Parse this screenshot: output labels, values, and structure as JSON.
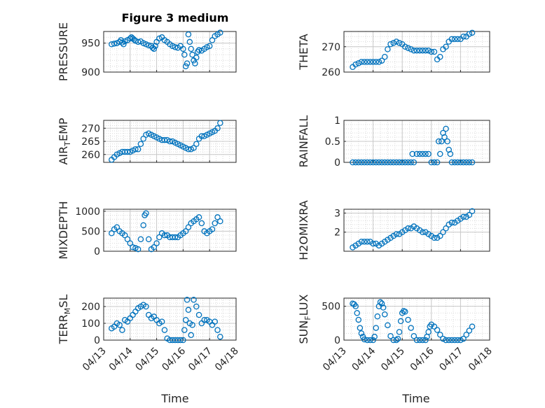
{
  "figure_title": "Figure 3 medium",
  "colors": {
    "marker": "#0072BD",
    "axis": "#262626",
    "grid": "#d9d9d9"
  },
  "chart_data": [
    {
      "type": "scatter",
      "ylabel": "PRESSURE",
      "ylabel_sub": "",
      "ylabel_tail": "",
      "ylim": [
        900,
        970
      ],
      "yticks": [
        900,
        950
      ],
      "xlim": [
        0,
        5
      ],
      "show_xticklabels": false,
      "x": [
        0.3,
        0.4,
        0.5,
        0.6,
        0.65,
        0.7,
        0.75,
        0.8,
        0.9,
        1.0,
        1.05,
        1.1,
        1.15,
        1.2,
        1.3,
        1.4,
        1.5,
        1.6,
        1.7,
        1.8,
        1.85,
        1.9,
        1.95,
        2.0,
        2.1,
        2.2,
        2.3,
        2.4,
        2.5,
        2.6,
        2.7,
        2.8,
        2.9,
        3.0,
        3.05,
        3.1,
        3.15,
        3.2,
        3.25,
        3.3,
        3.35,
        3.4,
        3.45,
        3.5,
        3.55,
        3.6,
        3.7,
        3.8,
        3.9,
        4.0,
        4.1,
        4.2,
        4.3,
        4.4
      ],
      "y": [
        948,
        949,
        950,
        952,
        955,
        951,
        948,
        953,
        955,
        958,
        960,
        958,
        956,
        954,
        952,
        953,
        950,
        948,
        946,
        945,
        942,
        940,
        945,
        952,
        958,
        960,
        955,
        952,
        948,
        945,
        943,
        942,
        945,
        940,
        930,
        910,
        915,
        965,
        952,
        940,
        930,
        920,
        915,
        925,
        935,
        938,
        937,
        940,
        943,
        945,
        955,
        962,
        965,
        968
      ]
    },
    {
      "type": "scatter",
      "ylabel": "THETA",
      "ylabel_sub": "",
      "ylabel_tail": "",
      "ylim": [
        260,
        276
      ],
      "yticks": [
        260,
        270
      ],
      "xlim": [
        0,
        5
      ],
      "show_xticklabels": false,
      "x": [
        0.3,
        0.4,
        0.5,
        0.6,
        0.7,
        0.8,
        0.9,
        1.0,
        1.1,
        1.2,
        1.3,
        1.4,
        1.5,
        1.6,
        1.7,
        1.8,
        1.9,
        2.0,
        2.1,
        2.2,
        2.3,
        2.4,
        2.5,
        2.6,
        2.7,
        2.8,
        2.9,
        3.0,
        3.1,
        3.2,
        3.3,
        3.4,
        3.5,
        3.6,
        3.7,
        3.8,
        3.9,
        4.0,
        4.1,
        4.2,
        4.3,
        4.4
      ],
      "y": [
        262,
        263,
        263.5,
        264,
        264,
        264,
        264,
        264,
        264,
        264,
        264.5,
        266,
        269,
        271,
        271.5,
        272,
        271.5,
        271,
        270,
        269.5,
        269,
        268.5,
        268.5,
        268.5,
        268.5,
        268.5,
        268.5,
        268,
        268,
        265,
        266,
        269,
        270,
        272,
        273,
        273,
        273,
        273,
        274,
        274,
        275,
        275.5
      ]
    },
    {
      "type": "scatter",
      "ylabel": "AIR",
      "ylabel_sub": "T",
      "ylabel_tail": "EMP",
      "ylim": [
        257,
        273
      ],
      "yticks": [
        260,
        265,
        270
      ],
      "xlim": [
        0,
        5
      ],
      "show_xticklabels": false,
      "x": [
        0.3,
        0.4,
        0.5,
        0.6,
        0.7,
        0.8,
        0.9,
        1.0,
        1.1,
        1.2,
        1.3,
        1.4,
        1.5,
        1.6,
        1.7,
        1.8,
        1.9,
        2.0,
        2.1,
        2.2,
        2.3,
        2.4,
        2.5,
        2.6,
        2.7,
        2.8,
        2.9,
        3.0,
        3.1,
        3.2,
        3.3,
        3.4,
        3.5,
        3.6,
        3.7,
        3.8,
        3.9,
        4.0,
        4.1,
        4.2,
        4.3,
        4.4
      ],
      "y": [
        258,
        259,
        260,
        260.5,
        261,
        261,
        261,
        261,
        261.5,
        262,
        262,
        264,
        266,
        267.5,
        268,
        267.5,
        267,
        266.5,
        266,
        265.5,
        265.5,
        265.5,
        265,
        265,
        264.5,
        264,
        263.5,
        263,
        262.5,
        262,
        262,
        262.5,
        264,
        266,
        267,
        267,
        267.5,
        268,
        268.5,
        269,
        270,
        272
      ]
    },
    {
      "type": "scatter",
      "ylabel": "RAINFALL",
      "ylabel_sub": "",
      "ylabel_tail": "",
      "ylim": [
        0,
        1
      ],
      "yticks": [
        0,
        0.5,
        1
      ],
      "xlim": [
        0,
        5
      ],
      "show_xticklabels": false,
      "x": [
        0.3,
        0.4,
        0.5,
        0.6,
        0.7,
        0.8,
        0.9,
        1.0,
        1.1,
        1.2,
        1.3,
        1.4,
        1.5,
        1.6,
        1.7,
        1.8,
        1.9,
        2.0,
        2.1,
        2.2,
        2.3,
        2.35,
        2.4,
        2.5,
        2.6,
        2.7,
        2.8,
        2.9,
        3.0,
        3.1,
        3.2,
        3.25,
        3.3,
        3.35,
        3.4,
        3.45,
        3.5,
        3.55,
        3.6,
        3.65,
        3.7,
        3.8,
        3.9,
        4.0,
        4.1,
        4.2,
        4.3,
        4.4
      ],
      "y": [
        0,
        0,
        0,
        0,
        0,
        0,
        0,
        0,
        0,
        0,
        0,
        0,
        0,
        0,
        0,
        0,
        0,
        0,
        0,
        0,
        0,
        0.2,
        0,
        0.2,
        0.2,
        0.2,
        0.2,
        0.2,
        0,
        0,
        0,
        0.5,
        0.2,
        0.5,
        0.7,
        0.6,
        0.8,
        0.5,
        0.3,
        0.2,
        0,
        0,
        0,
        0,
        0,
        0,
        0,
        0
      ]
    },
    {
      "type": "scatter",
      "ylabel": "MIXDEPTH",
      "ylabel_sub": "",
      "ylabel_tail": "",
      "ylim": [
        0,
        1050
      ],
      "yticks": [
        0,
        500,
        1000
      ],
      "xlim": [
        0,
        5
      ],
      "show_xticklabels": false,
      "x": [
        0.3,
        0.4,
        0.5,
        0.6,
        0.7,
        0.8,
        0.9,
        1.0,
        1.1,
        1.2,
        1.3,
        1.4,
        1.5,
        1.55,
        1.6,
        1.7,
        1.8,
        1.9,
        2.0,
        2.1,
        2.2,
        2.3,
        2.4,
        2.5,
        2.6,
        2.7,
        2.8,
        2.9,
        3.0,
        3.1,
        3.2,
        3.3,
        3.4,
        3.5,
        3.6,
        3.7,
        3.8,
        3.9,
        4.0,
        4.1,
        4.2,
        4.3,
        4.4
      ],
      "y": [
        450,
        550,
        600,
        500,
        450,
        400,
        300,
        200,
        100,
        80,
        50,
        300,
        650,
        900,
        950,
        300,
        50,
        100,
        200,
        350,
        450,
        400,
        400,
        350,
        350,
        350,
        350,
        400,
        450,
        500,
        600,
        700,
        750,
        800,
        850,
        700,
        500,
        450,
        500,
        550,
        700,
        850,
        750
      ]
    },
    {
      "type": "scatter",
      "ylabel": "H2OMIXRA",
      "ylabel_sub": "",
      "ylabel_tail": "",
      "ylim": [
        1,
        3.2
      ],
      "yticks": [
        2,
        3
      ],
      "xlim": [
        0,
        5
      ],
      "show_xticklabels": false,
      "x": [
        0.3,
        0.4,
        0.5,
        0.6,
        0.7,
        0.8,
        0.9,
        1.0,
        1.1,
        1.2,
        1.3,
        1.4,
        1.5,
        1.6,
        1.7,
        1.8,
        1.9,
        2.0,
        2.1,
        2.2,
        2.3,
        2.4,
        2.5,
        2.6,
        2.7,
        2.8,
        2.9,
        3.0,
        3.1,
        3.2,
        3.3,
        3.4,
        3.5,
        3.6,
        3.7,
        3.8,
        3.9,
        4.0,
        4.1,
        4.2,
        4.3,
        4.4
      ],
      "y": [
        1.2,
        1.3,
        1.4,
        1.5,
        1.5,
        1.5,
        1.5,
        1.4,
        1.4,
        1.3,
        1.4,
        1.5,
        1.6,
        1.7,
        1.8,
        1.9,
        1.9,
        2.0,
        2.1,
        2.2,
        2.2,
        2.3,
        2.2,
        2.1,
        2.0,
        2.0,
        1.9,
        1.8,
        1.7,
        1.7,
        1.8,
        2.0,
        2.2,
        2.4,
        2.5,
        2.5,
        2.6,
        2.7,
        2.8,
        2.8,
        2.9,
        3.1
      ]
    },
    {
      "type": "scatter",
      "ylabel": "TERR",
      "ylabel_sub": "M",
      "ylabel_tail": "SL",
      "ylim": [
        0,
        250
      ],
      "yticks": [
        0,
        100,
        200
      ],
      "xlim": [
        0,
        5
      ],
      "show_xticklabels": true,
      "x": [
        0.3,
        0.4,
        0.5,
        0.6,
        0.7,
        0.8,
        0.9,
        1.0,
        1.1,
        1.2,
        1.3,
        1.4,
        1.5,
        1.6,
        1.7,
        1.8,
        1.9,
        2.0,
        2.1,
        2.2,
        2.3,
        2.4,
        2.5,
        2.6,
        2.7,
        2.8,
        2.9,
        3.0,
        3.05,
        3.1,
        3.15,
        3.2,
        3.25,
        3.3,
        3.35,
        3.4,
        3.5,
        3.6,
        3.7,
        3.8,
        3.9,
        4.0,
        4.1,
        4.2,
        4.3,
        4.4
      ],
      "y": [
        70,
        80,
        100,
        90,
        60,
        120,
        110,
        130,
        150,
        170,
        190,
        200,
        210,
        200,
        150,
        130,
        140,
        120,
        100,
        110,
        60,
        10,
        0,
        0,
        0,
        0,
        0,
        0,
        60,
        120,
        240,
        180,
        100,
        30,
        90,
        240,
        200,
        150,
        100,
        120,
        120,
        110,
        90,
        110,
        60,
        20
      ]
    },
    {
      "type": "scatter",
      "ylabel": "SUN",
      "ylabel_sub": "F",
      "ylabel_tail": "LUX",
      "ylim": [
        0,
        620
      ],
      "yticks": [
        0,
        500
      ],
      "xlim": [
        0,
        5
      ],
      "show_xticklabels": true,
      "x": [
        0.3,
        0.35,
        0.4,
        0.45,
        0.5,
        0.55,
        0.6,
        0.65,
        0.7,
        0.8,
        0.9,
        1.0,
        1.05,
        1.1,
        1.15,
        1.2,
        1.25,
        1.3,
        1.35,
        1.4,
        1.5,
        1.6,
        1.7,
        1.8,
        1.85,
        1.9,
        1.95,
        2.0,
        2.05,
        2.1,
        2.2,
        2.3,
        2.4,
        2.5,
        2.6,
        2.7,
        2.8,
        2.85,
        2.9,
        2.95,
        3.0,
        3.1,
        3.2,
        3.3,
        3.4,
        3.5,
        3.6,
        3.7,
        3.8,
        3.9,
        4.0,
        4.1,
        4.2,
        4.3,
        4.4
      ],
      "y": [
        540,
        530,
        500,
        400,
        300,
        180,
        100,
        50,
        10,
        0,
        0,
        0,
        50,
        180,
        350,
        500,
        560,
        540,
        480,
        380,
        220,
        60,
        0,
        0,
        20,
        120,
        280,
        400,
        430,
        420,
        300,
        180,
        60,
        0,
        0,
        0,
        0,
        50,
        120,
        200,
        230,
        200,
        150,
        80,
        20,
        0,
        0,
        0,
        0,
        0,
        0,
        20,
        80,
        140,
        200
      ]
    }
  ],
  "x_axis": {
    "label": "Time",
    "tick_labels": [
      "04/13",
      "04/14",
      "04/15",
      "04/16",
      "04/17",
      "04/18"
    ]
  }
}
